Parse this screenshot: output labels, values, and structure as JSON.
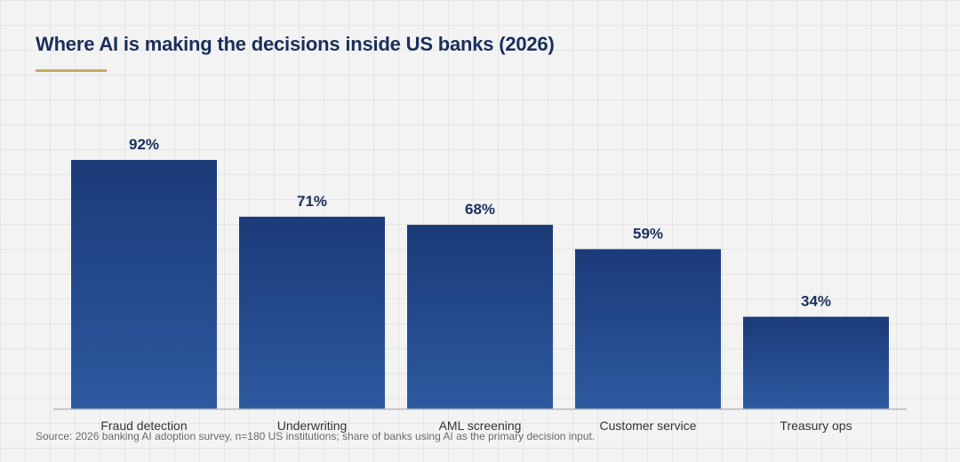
{
  "title": "Where AI is making the decisions inside US banks (2026)",
  "source": "Source: 2026 banking AI adoption survey, n=180 US institutions; share of banks using AI as the primary decision input.",
  "colors": {
    "bar_top": "#1b3a78",
    "bar_bottom": "#2d5aa0",
    "label": "#1a2f5c",
    "accent": "#c9a862",
    "axis": "#b5b5b5",
    "category": "#333333"
  },
  "chart_data": {
    "type": "bar",
    "categories": [
      "Fraud detection",
      "Underwriting",
      "AML screening",
      "Customer service",
      "Treasury ops"
    ],
    "values": [
      92,
      71,
      68,
      59,
      34
    ],
    "data_labels": [
      "92%",
      "71%",
      "68%",
      "59%",
      "34%"
    ],
    "title": "Where AI is making the decisions inside US banks (2026)",
    "xlabel": "",
    "ylabel": "",
    "ylim": [
      0,
      100
    ],
    "grid": false
  }
}
